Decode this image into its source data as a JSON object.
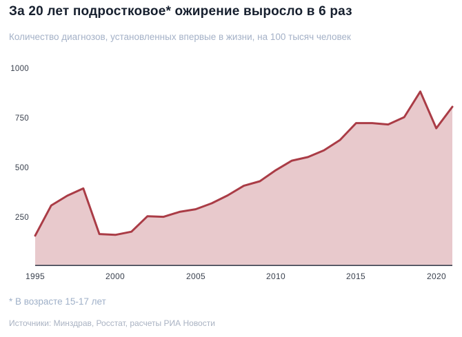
{
  "header": {
    "title": "За 20 лет подростковое* ожирение выросло в 6 раз",
    "subtitle": "Количество диагнозов, установленных впервые в жизни, на 100 тысяч человек"
  },
  "chart_data": {
    "type": "area",
    "title": "За 20 лет подростковое* ожирение выросло в 6 раз",
    "subtitle": "Количество диагнозов, установленных впервые в жизни, на 100 тысяч человек",
    "x": [
      1995,
      1996,
      1997,
      1998,
      1999,
      2000,
      2001,
      2002,
      2003,
      2004,
      2005,
      2006,
      2007,
      2008,
      2009,
      2010,
      2011,
      2012,
      2013,
      2014,
      2015,
      2016,
      2017,
      2018,
      2019,
      2020,
      2021
    ],
    "values": [
      160,
      312,
      361,
      398,
      168,
      164,
      180,
      258,
      255,
      280,
      293,
      323,
      363,
      411,
      434,
      490,
      538,
      556,
      590,
      642,
      727,
      727,
      720,
      757,
      886,
      701,
      809
    ],
    "yticks": [
      1000,
      750,
      500,
      250
    ],
    "xticks": [
      1995,
      2000,
      2005,
      2010,
      2015,
      2020
    ],
    "ylim": [
      0,
      1050
    ],
    "xlim": [
      1995,
      2021
    ],
    "grid": false,
    "legend": "none",
    "line_color": "#aa3c46",
    "fill_color": "#e8c9cc",
    "axis_color": "#3a4250"
  },
  "footer": {
    "footnote": "* В возрасте 15-17 лет",
    "sources": "Источники: Минздрав, Росстат, расчеты РИА Новости"
  }
}
